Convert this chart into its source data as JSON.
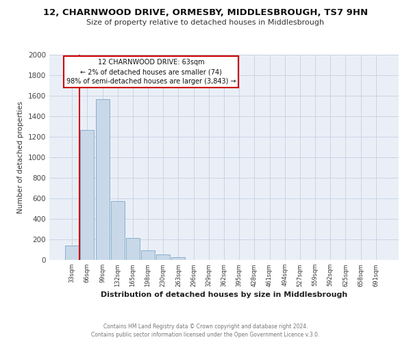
{
  "title": "12, CHARNWOOD DRIVE, ORMESBY, MIDDLESBROUGH, TS7 9HN",
  "subtitle": "Size of property relative to detached houses in Middlesbrough",
  "xlabel": "Distribution of detached houses by size in Middlesbrough",
  "ylabel": "Number of detached properties",
  "bar_labels": [
    "33sqm",
    "66sqm",
    "99sqm",
    "132sqm",
    "165sqm",
    "198sqm",
    "230sqm",
    "263sqm",
    "296sqm",
    "329sqm",
    "362sqm",
    "395sqm",
    "428sqm",
    "461sqm",
    "494sqm",
    "527sqm",
    "559sqm",
    "592sqm",
    "625sqm",
    "658sqm",
    "691sqm"
  ],
  "bar_values": [
    140,
    1270,
    1570,
    575,
    215,
    95,
    55,
    30,
    0,
    0,
    0,
    0,
    0,
    0,
    0,
    0,
    0,
    0,
    0,
    0,
    0
  ],
  "bar_color": "#c8d8e8",
  "bar_edge_color": "#7aa8c8",
  "grid_color": "#c8d4e4",
  "bg_color": "#eaeff7",
  "vline_color": "#cc0000",
  "ylim_max": 2000,
  "yticks": [
    0,
    200,
    400,
    600,
    800,
    1000,
    1200,
    1400,
    1600,
    1800,
    2000
  ],
  "annotation_title": "12 CHARNWOOD DRIVE: 63sqm",
  "annotation_line1": "← 2% of detached houses are smaller (74)",
  "annotation_line2": "98% of semi-detached houses are larger (3,843) →",
  "annotation_box_edge": "#cc0000",
  "footer1": "Contains HM Land Registry data © Crown copyright and database right 2024.",
  "footer2": "Contains public sector information licensed under the Open Government Licence v.3.0."
}
